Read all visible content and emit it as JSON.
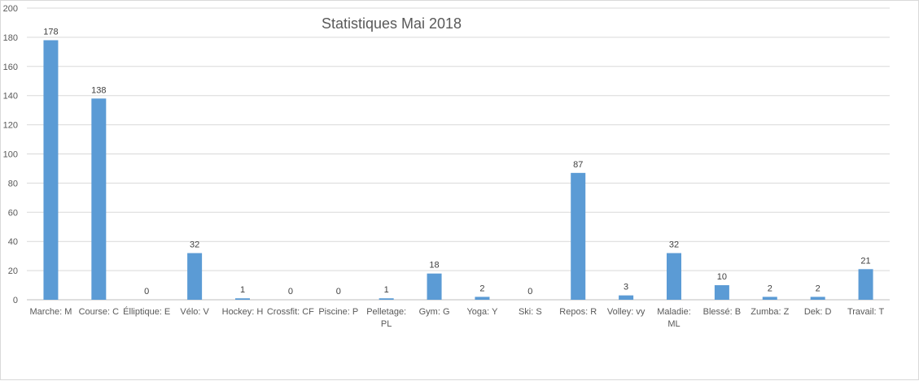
{
  "chart_data": {
    "type": "bar",
    "title": "Statistiques Mai 2018",
    "categories": [
      [
        "Marche: M"
      ],
      [
        "Course: C"
      ],
      [
        "Élliptique: E"
      ],
      [
        "Vélo: V"
      ],
      [
        "Hockey: H"
      ],
      [
        "Crossfit: CF"
      ],
      [
        "Piscine: P"
      ],
      [
        "Pelletage:",
        "PL"
      ],
      [
        "Gym: G"
      ],
      [
        "Yoga: Y"
      ],
      [
        "Ski: S"
      ],
      [
        "Repos: R"
      ],
      [
        "Volley: vy"
      ],
      [
        "Maladie:",
        "ML"
      ],
      [
        "Blessé: B"
      ],
      [
        "Zumba: Z"
      ],
      [
        "Dek: D"
      ],
      [
        "Travail: T"
      ]
    ],
    "values": [
      178,
      138,
      0,
      32,
      1,
      0,
      0,
      1,
      18,
      2,
      0,
      87,
      3,
      32,
      10,
      2,
      2,
      21
    ],
    "ylim": [
      0,
      200
    ],
    "yticks": [
      0,
      20,
      40,
      60,
      80,
      100,
      120,
      140,
      160,
      180,
      200
    ],
    "grid": true,
    "data_labels": true,
    "colors": {
      "bar": "#5b9bd5",
      "grid": "#d9d9d9",
      "axis": "#bfbfbf"
    }
  }
}
